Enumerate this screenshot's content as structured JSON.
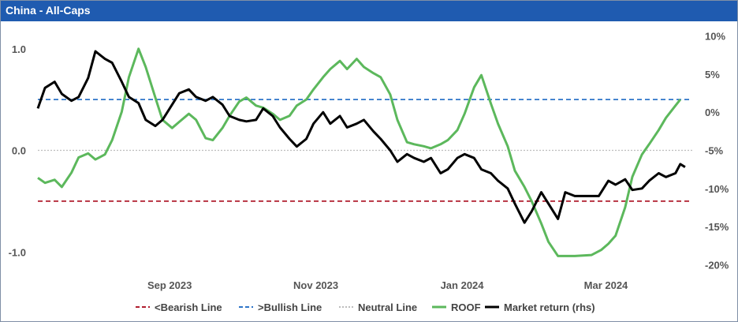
{
  "window": {
    "title": "China - All-Caps"
  },
  "chart_data": {
    "type": "line",
    "title": "China - All-Caps",
    "x_tick_labels": [
      "Sep 2023",
      "Nov 2023",
      "Jan 2024",
      "Mar 2024"
    ],
    "x_ticks": [
      "2023-09-01",
      "2023-11-01",
      "2024-01-01",
      "2024-03-01"
    ],
    "xlim": [
      "2023-07-10",
      "2024-04-08"
    ],
    "y_left": {
      "ylim": [
        -1.2,
        1.2
      ],
      "ticks": [
        1.0,
        0.0,
        -1.0
      ],
      "tick_labels": [
        "1.0",
        "0.0",
        "-1.0"
      ]
    },
    "y_right": {
      "ylim": [
        -21,
        11
      ],
      "ticks": [
        10,
        5,
        0,
        -5,
        -10,
        -15,
        -20
      ],
      "tick_labels": [
        "10%",
        "5%",
        "0%",
        "-5%",
        "-10%",
        "-15%",
        "-20%"
      ]
    },
    "grid": false,
    "legend_position": "bottom",
    "reference_lines": [
      {
        "name": "<Bearish Line",
        "value": -0.5,
        "color": "#b01e2f",
        "style": "dashed",
        "axis": "left"
      },
      {
        "name": ">Bullish Line",
        "value": 0.5,
        "color": "#2e75c8",
        "style": "dashed",
        "axis": "left"
      },
      {
        "name": "Neutral Line",
        "value": 0.0,
        "color": "#bdbdbd",
        "style": "dotted",
        "axis": "left"
      }
    ],
    "series": [
      {
        "name": "ROOF",
        "axis": "left",
        "color": "#5cb85c",
        "points": [
          [
            "2023-07-10",
            -0.27
          ],
          [
            "2023-07-13",
            -0.32
          ],
          [
            "2023-07-17",
            -0.29
          ],
          [
            "2023-07-20",
            -0.36
          ],
          [
            "2023-07-24",
            -0.22
          ],
          [
            "2023-07-27",
            -0.07
          ],
          [
            "2023-07-31",
            -0.03
          ],
          [
            "2023-08-03",
            -0.09
          ],
          [
            "2023-08-07",
            -0.04
          ],
          [
            "2023-08-10",
            0.1
          ],
          [
            "2023-08-14",
            0.38
          ],
          [
            "2023-08-17",
            0.72
          ],
          [
            "2023-08-21",
            1.0
          ],
          [
            "2023-08-24",
            0.82
          ],
          [
            "2023-08-28",
            0.52
          ],
          [
            "2023-08-31",
            0.3
          ],
          [
            "2023-09-04",
            0.22
          ],
          [
            "2023-09-07",
            0.28
          ],
          [
            "2023-09-11",
            0.36
          ],
          [
            "2023-09-14",
            0.3
          ],
          [
            "2023-09-18",
            0.12
          ],
          [
            "2023-09-21",
            0.1
          ],
          [
            "2023-09-25",
            0.22
          ],
          [
            "2023-09-28",
            0.34
          ],
          [
            "2023-10-02",
            0.48
          ],
          [
            "2023-10-05",
            0.52
          ],
          [
            "2023-10-09",
            0.44
          ],
          [
            "2023-10-12",
            0.42
          ],
          [
            "2023-10-16",
            0.36
          ],
          [
            "2023-10-19",
            0.3
          ],
          [
            "2023-10-23",
            0.34
          ],
          [
            "2023-10-26",
            0.44
          ],
          [
            "2023-10-30",
            0.5
          ],
          [
            "2023-11-02",
            0.6
          ],
          [
            "2023-11-06",
            0.72
          ],
          [
            "2023-11-09",
            0.8
          ],
          [
            "2023-11-13",
            0.88
          ],
          [
            "2023-11-16",
            0.8
          ],
          [
            "2023-11-20",
            0.9
          ],
          [
            "2023-11-23",
            0.82
          ],
          [
            "2023-11-27",
            0.76
          ],
          [
            "2023-11-30",
            0.72
          ],
          [
            "2023-12-04",
            0.55
          ],
          [
            "2023-12-07",
            0.3
          ],
          [
            "2023-12-11",
            0.08
          ],
          [
            "2023-12-14",
            0.06
          ],
          [
            "2023-12-18",
            0.04
          ],
          [
            "2023-12-21",
            0.02
          ],
          [
            "2023-12-25",
            0.06
          ],
          [
            "2023-12-28",
            0.1
          ],
          [
            "2024-01-01",
            0.2
          ],
          [
            "2024-01-04",
            0.36
          ],
          [
            "2024-01-08",
            0.62
          ],
          [
            "2024-01-11",
            0.74
          ],
          [
            "2024-01-15",
            0.46
          ],
          [
            "2024-01-18",
            0.26
          ],
          [
            "2024-01-22",
            0.04
          ],
          [
            "2024-01-25",
            -0.2
          ],
          [
            "2024-01-29",
            -0.36
          ],
          [
            "2024-02-01",
            -0.5
          ],
          [
            "2024-02-05",
            -0.72
          ],
          [
            "2024-02-08",
            -0.9
          ],
          [
            "2024-02-12",
            -1.04
          ],
          [
            "2024-02-19",
            -1.04
          ],
          [
            "2024-02-26",
            -1.03
          ],
          [
            "2024-03-01",
            -0.98
          ],
          [
            "2024-03-04",
            -0.92
          ],
          [
            "2024-03-07",
            -0.84
          ],
          [
            "2024-03-11",
            -0.56
          ],
          [
            "2024-03-14",
            -0.26
          ],
          [
            "2024-03-18",
            -0.04
          ],
          [
            "2024-03-21",
            0.06
          ],
          [
            "2024-03-25",
            0.2
          ],
          [
            "2024-03-28",
            0.32
          ],
          [
            "2024-04-01",
            0.44
          ],
          [
            "2024-04-03",
            0.5
          ]
        ]
      },
      {
        "name": "Market return (rhs)",
        "axis": "right",
        "color": "#000000",
        "points": [
          [
            "2023-07-10",
            0.5
          ],
          [
            "2023-07-13",
            3.2
          ],
          [
            "2023-07-17",
            4.0
          ],
          [
            "2023-07-20",
            2.4
          ],
          [
            "2023-07-24",
            1.5
          ],
          [
            "2023-07-27",
            2.0
          ],
          [
            "2023-07-31",
            4.5
          ],
          [
            "2023-08-03",
            8.0
          ],
          [
            "2023-08-07",
            7.0
          ],
          [
            "2023-08-10",
            6.5
          ],
          [
            "2023-08-14",
            4.0
          ],
          [
            "2023-08-17",
            2.0
          ],
          [
            "2023-08-21",
            1.2
          ],
          [
            "2023-08-24",
            -1.0
          ],
          [
            "2023-08-28",
            -1.8
          ],
          [
            "2023-08-31",
            -1.0
          ],
          [
            "2023-09-04",
            1.0
          ],
          [
            "2023-09-07",
            2.5
          ],
          [
            "2023-09-11",
            3.0
          ],
          [
            "2023-09-14",
            2.0
          ],
          [
            "2023-09-18",
            1.5
          ],
          [
            "2023-09-21",
            2.0
          ],
          [
            "2023-09-25",
            1.0
          ],
          [
            "2023-09-28",
            -0.5
          ],
          [
            "2023-10-02",
            -1.0
          ],
          [
            "2023-10-05",
            -1.2
          ],
          [
            "2023-10-09",
            -1.0
          ],
          [
            "2023-10-12",
            0.5
          ],
          [
            "2023-10-16",
            -0.5
          ],
          [
            "2023-10-19",
            -2.0
          ],
          [
            "2023-10-23",
            -3.5
          ],
          [
            "2023-10-26",
            -4.5
          ],
          [
            "2023-10-30",
            -3.5
          ],
          [
            "2023-11-02",
            -1.5
          ],
          [
            "2023-11-06",
            0.0
          ],
          [
            "2023-11-09",
            -1.5
          ],
          [
            "2023-11-13",
            -0.5
          ],
          [
            "2023-11-16",
            -2.0
          ],
          [
            "2023-11-20",
            -1.5
          ],
          [
            "2023-11-23",
            -1.0
          ],
          [
            "2023-11-27",
            -2.5
          ],
          [
            "2023-11-30",
            -3.5
          ],
          [
            "2023-12-04",
            -5.0
          ],
          [
            "2023-12-07",
            -6.5
          ],
          [
            "2023-12-11",
            -5.5
          ],
          [
            "2023-12-14",
            -6.0
          ],
          [
            "2023-12-18",
            -6.5
          ],
          [
            "2023-12-21",
            -6.0
          ],
          [
            "2023-12-25",
            -8.0
          ],
          [
            "2023-12-28",
            -7.5
          ],
          [
            "2024-01-01",
            -6.0
          ],
          [
            "2024-01-04",
            -5.5
          ],
          [
            "2024-01-08",
            -6.0
          ],
          [
            "2024-01-11",
            -7.5
          ],
          [
            "2024-01-15",
            -8.0
          ],
          [
            "2024-01-18",
            -9.0
          ],
          [
            "2024-01-22",
            -10.0
          ],
          [
            "2024-01-25",
            -12.0
          ],
          [
            "2024-01-29",
            -14.5
          ],
          [
            "2024-02-01",
            -13.0
          ],
          [
            "2024-02-05",
            -10.5
          ],
          [
            "2024-02-08",
            -12.0
          ],
          [
            "2024-02-12",
            -14.0
          ],
          [
            "2024-02-15",
            -10.5
          ],
          [
            "2024-02-19",
            -11.0
          ],
          [
            "2024-02-22",
            -11.0
          ],
          [
            "2024-02-26",
            -11.0
          ],
          [
            "2024-02-29",
            -11.0
          ],
          [
            "2024-03-04",
            -9.0
          ],
          [
            "2024-03-07",
            -9.5
          ],
          [
            "2024-03-11",
            -8.8
          ],
          [
            "2024-03-14",
            -10.2
          ],
          [
            "2024-03-18",
            -10.0
          ],
          [
            "2024-03-21",
            -9.0
          ],
          [
            "2024-03-25",
            -8.0
          ],
          [
            "2024-03-28",
            -8.5
          ],
          [
            "2024-04-01",
            -8.0
          ],
          [
            "2024-04-03",
            -6.8
          ],
          [
            "2024-04-05",
            -7.2
          ]
        ]
      }
    ]
  },
  "legend": {
    "items": [
      {
        "label": "<Bearish Line",
        "color": "#b01e2f",
        "style": "dashed"
      },
      {
        "label": ">Bullish Line",
        "color": "#2e75c8",
        "style": "dashed"
      },
      {
        "label": "Neutral Line",
        "color": "#bdbdbd",
        "style": "dotted"
      },
      {
        "label": "ROOF",
        "color": "#5cb85c",
        "style": "solid"
      },
      {
        "label": "Market return (rhs)",
        "color": "#000000",
        "style": "solid"
      }
    ]
  }
}
